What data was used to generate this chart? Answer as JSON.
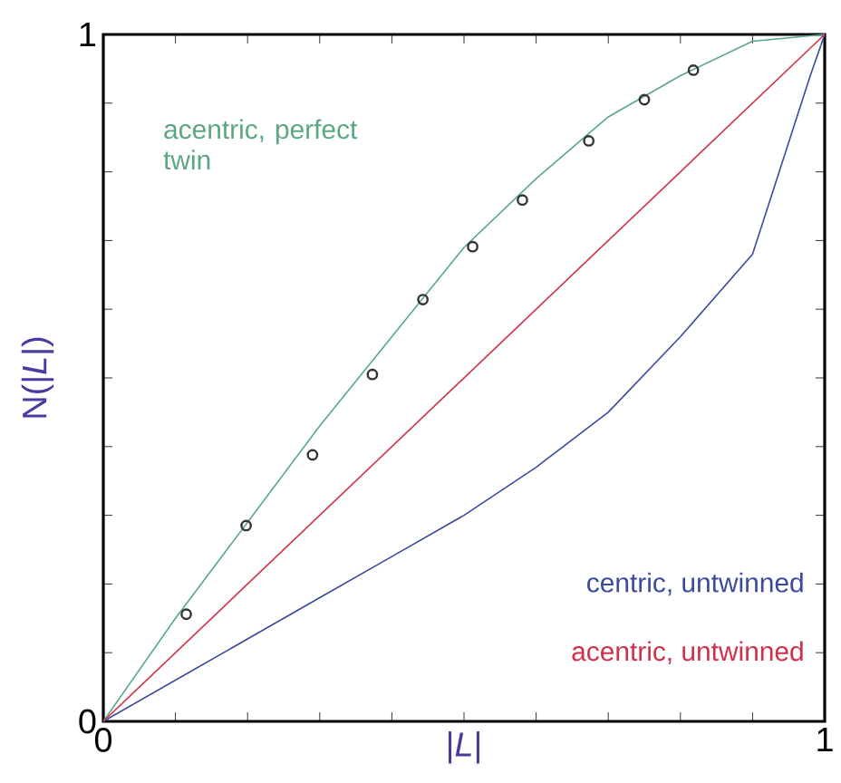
{
  "chart_data": {
    "type": "line",
    "xlabel": "|*L*|",
    "ylabel": "N(|*L*|)",
    "xlim": [
      0,
      1
    ],
    "ylim": [
      0,
      1
    ],
    "xticks": [
      0,
      {
        "value": 0.1,
        "label": null
      },
      {
        "value": 0.2,
        "label": null
      },
      {
        "value": 0.3,
        "label": null
      },
      {
        "value": 0.4,
        "label": null
      },
      {
        "value": 0.5,
        "label": null
      },
      {
        "value": 0.6,
        "label": null
      },
      {
        "value": 0.7,
        "label": null
      },
      {
        "value": 0.8,
        "label": null
      },
      {
        "value": 0.9,
        "label": null
      },
      1
    ],
    "yticks": [
      0,
      {
        "value": 0.1,
        "label": null
      },
      {
        "value": 0.2,
        "label": null
      },
      {
        "value": 0.3,
        "label": null
      },
      {
        "value": 0.4,
        "label": null
      },
      {
        "value": 0.5,
        "label": null
      },
      {
        "value": 0.6,
        "label": null
      },
      {
        "value": 0.7,
        "label": null
      },
      {
        "value": 0.8,
        "label": null
      },
      {
        "value": 0.9,
        "label": null
      },
      1
    ],
    "series": [
      {
        "name": "acentric, perfect twin",
        "color": "#5aa882",
        "marker": "none",
        "x": [
          0,
          0.1,
          0.2,
          0.3,
          0.4,
          0.5,
          0.6,
          0.7,
          0.8,
          0.9,
          1
        ],
        "values": [
          0,
          0.15,
          0.29,
          0.43,
          0.56,
          0.69,
          0.79,
          0.88,
          0.94,
          0.99,
          1
        ]
      },
      {
        "name": "centric, untwinned",
        "color": "#3a4a9e",
        "marker": "none",
        "x": [
          0,
          0.1,
          0.2,
          0.3,
          0.4,
          0.5,
          0.6,
          0.7,
          0.8,
          0.9,
          0.98,
          1
        ],
        "values": [
          0,
          0.06,
          0.12,
          0.18,
          0.24,
          0.3,
          0.37,
          0.45,
          0.56,
          0.68,
          0.94,
          1
        ]
      },
      {
        "name": "acentric, untwinned",
        "color": "#d03048",
        "marker": "none",
        "x": [
          0,
          1
        ],
        "values": [
          0,
          1
        ]
      },
      {
        "type": "scatter",
        "color": "#333333",
        "marker": "circle",
        "x": [
          0.115,
          0.198,
          0.29,
          0.373,
          0.443,
          0.512,
          0.581,
          0.673,
          0.75,
          0.818
        ],
        "values": [
          0.156,
          0.285,
          0.388,
          0.505,
          0.614,
          0.691,
          0.759,
          0.845,
          0.905,
          0.948
        ]
      }
    ]
  }
}
